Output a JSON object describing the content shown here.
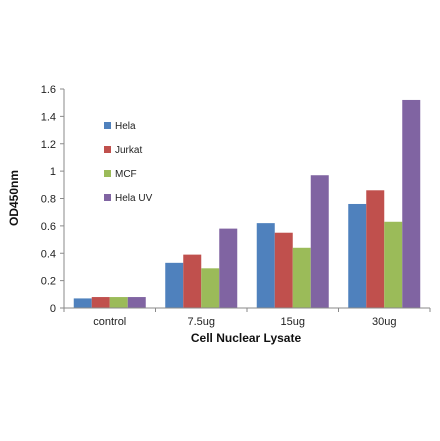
{
  "chart_data": {
    "type": "bar",
    "title": "",
    "xlabel": "Cell Nuclear Lysate",
    "ylabel": "OD450nm",
    "categories": [
      "control",
      "7.5ug",
      "15ug",
      "30ug"
    ],
    "ylim": [
      0,
      1.6
    ],
    "yticks": [
      0,
      0.2,
      0.4,
      0.6,
      0.8,
      1,
      1.2,
      1.4,
      1.6
    ],
    "ytick_labels": [
      "0",
      "0.2",
      "0.4",
      "0.6",
      "0.8",
      "1",
      "1.2",
      "1.4",
      "1.6"
    ],
    "grid": false,
    "legend_placement": "top-left",
    "series": [
      {
        "name": "Hela",
        "color": "#4f81bd",
        "values": [
          0.07,
          0.33,
          0.62,
          0.76
        ]
      },
      {
        "name": "Jurkat",
        "color": "#c0504d",
        "values": [
          0.08,
          0.39,
          0.55,
          0.86
        ]
      },
      {
        "name": "MCF",
        "color": "#9bbb59",
        "values": [
          0.08,
          0.29,
          0.44,
          0.63
        ]
      },
      {
        "name": "Hela UV",
        "color": "#8064a2",
        "values": [
          0.08,
          0.58,
          0.97,
          1.52
        ]
      }
    ]
  }
}
